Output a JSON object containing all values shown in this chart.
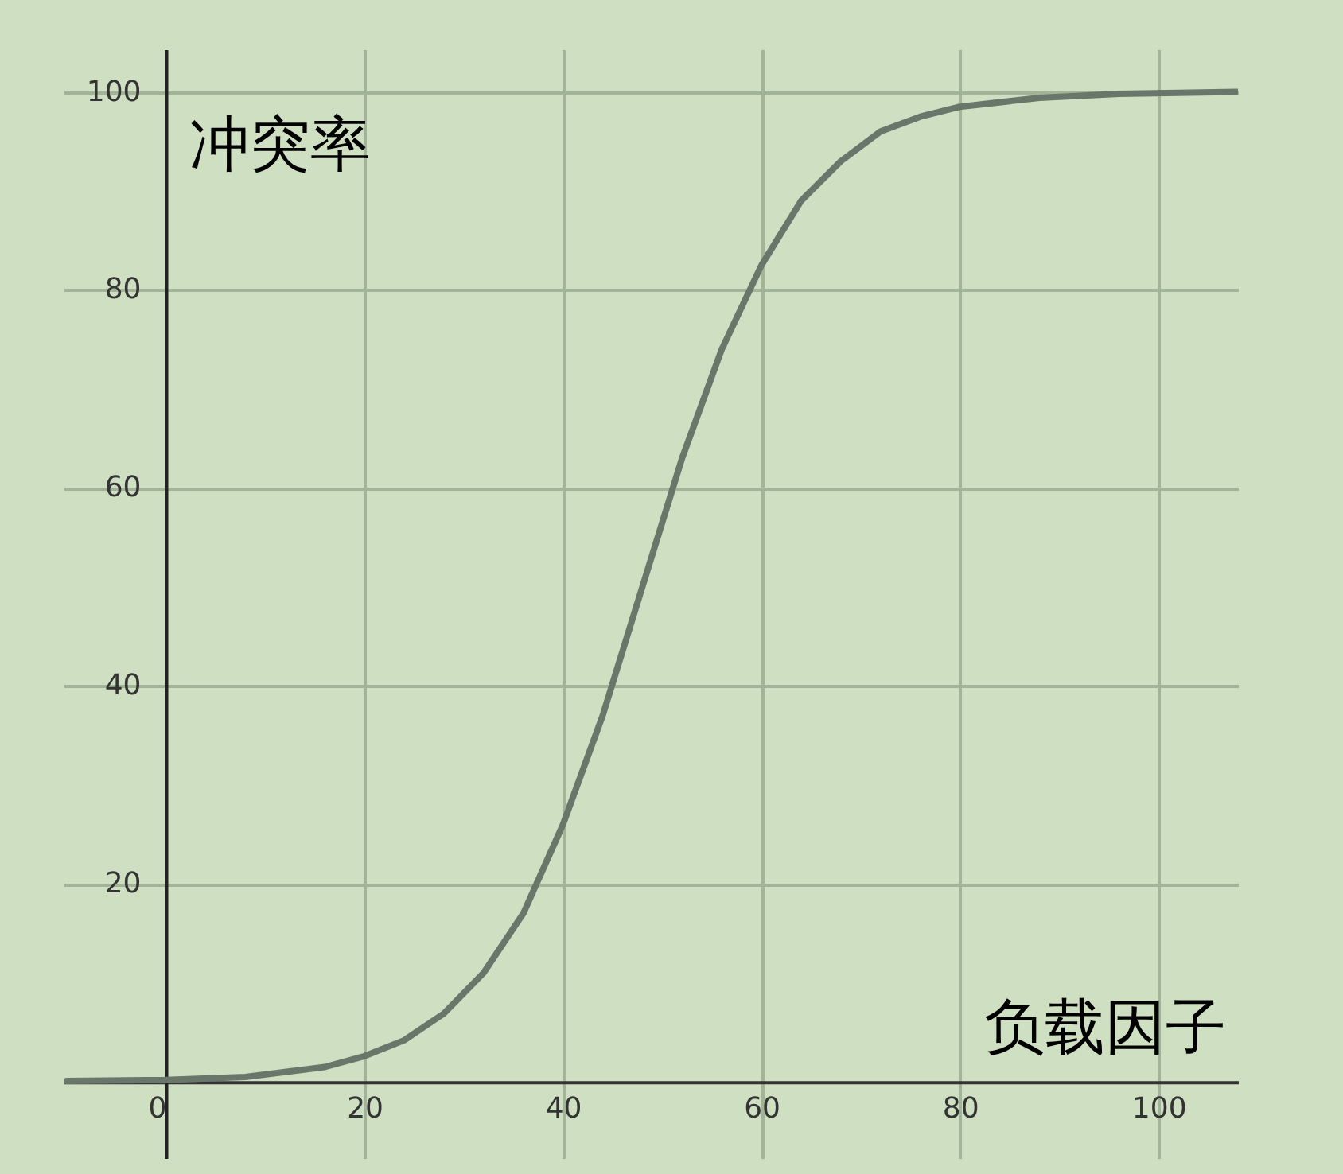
{
  "chart_data": {
    "type": "line",
    "xlabel": "负载因子",
    "ylabel": "冲突率",
    "x": [
      -10,
      0,
      8,
      16,
      20,
      24,
      28,
      32,
      36,
      40,
      44,
      48,
      52,
      56,
      60,
      64,
      68,
      72,
      76,
      80,
      88,
      96,
      108
    ],
    "series": [
      {
        "color": "#69776a",
        "values": [
          0.1,
          0.2,
          0.5,
          1.5,
          2.6,
          4.2,
          6.9,
          11,
          17,
          26,
          37,
          50,
          63,
          74,
          82.5,
          89,
          93,
          96,
          97.5,
          98.5,
          99.4,
          99.8,
          100
        ]
      }
    ],
    "xlim": [
      -10.3,
      108
    ],
    "ylim": [
      -7.7,
      104.3
    ],
    "xticks": [
      0,
      20,
      40,
      60,
      80,
      100
    ],
    "yticks": [
      20,
      40,
      60,
      80,
      100
    ],
    "grid": true,
    "marker": "none",
    "line_style": "solid"
  }
}
